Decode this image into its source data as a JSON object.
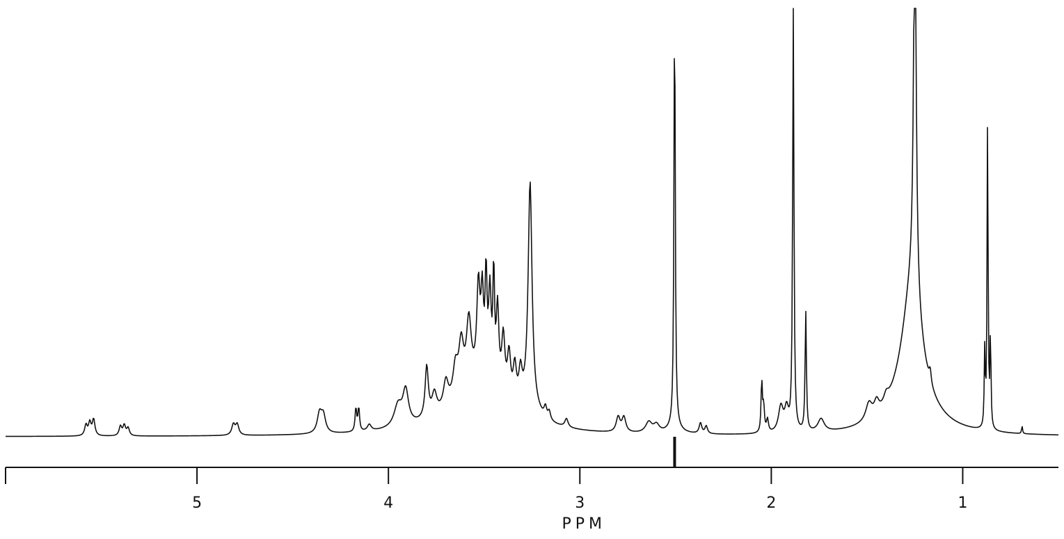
{
  "chart_data": {
    "type": "line",
    "title": "",
    "xlabel": "PPM",
    "ylabel": "",
    "x_reversed": true,
    "xlim": [
      6.0,
      0.5
    ],
    "ylim": [
      0,
      1.0
    ],
    "grid": false,
    "xticks": [
      {
        "value": 5,
        "label": "5"
      },
      {
        "value": 4,
        "label": "4"
      },
      {
        "value": 3,
        "label": "3"
      },
      {
        "value": 2,
        "label": "2"
      },
      {
        "value": 1,
        "label": "1"
      }
    ],
    "minor_tick_step": 0.5,
    "series": [
      {
        "color": "#111111",
        "peaks": [
          {
            "x": 5.58,
            "y": 0.025,
            "w": 0.008
          },
          {
            "x": 5.56,
            "y": 0.03,
            "w": 0.008
          },
          {
            "x": 5.54,
            "y": 0.038,
            "w": 0.008
          },
          {
            "x": 5.4,
            "y": 0.022,
            "w": 0.008
          },
          {
            "x": 5.38,
            "y": 0.024,
            "w": 0.008
          },
          {
            "x": 5.36,
            "y": 0.018,
            "w": 0.008
          },
          {
            "x": 4.81,
            "y": 0.025,
            "w": 0.01
          },
          {
            "x": 4.79,
            "y": 0.025,
            "w": 0.01
          },
          {
            "x": 4.36,
            "y": 0.045,
            "w": 0.014
          },
          {
            "x": 4.34,
            "y": 0.04,
            "w": 0.014
          },
          {
            "x": 4.17,
            "y": 0.055,
            "w": 0.005
          },
          {
            "x": 4.155,
            "y": 0.055,
            "w": 0.005
          },
          {
            "x": 4.1,
            "y": 0.015,
            "w": 0.012
          },
          {
            "x": 3.95,
            "y": 0.05,
            "w": 0.025
          },
          {
            "x": 3.91,
            "y": 0.08,
            "w": 0.018
          },
          {
            "x": 3.8,
            "y": 0.12,
            "w": 0.01
          },
          {
            "x": 3.76,
            "y": 0.05,
            "w": 0.015
          },
          {
            "x": 3.7,
            "y": 0.06,
            "w": 0.015
          },
          {
            "x": 3.65,
            "y": 0.07,
            "w": 0.015
          },
          {
            "x": 3.62,
            "y": 0.11,
            "w": 0.015
          },
          {
            "x": 3.58,
            "y": 0.15,
            "w": 0.015
          },
          {
            "x": 3.53,
            "y": 0.21,
            "w": 0.01
          },
          {
            "x": 3.51,
            "y": 0.18,
            "w": 0.008
          },
          {
            "x": 3.49,
            "y": 0.23,
            "w": 0.006
          },
          {
            "x": 3.47,
            "y": 0.2,
            "w": 0.008
          },
          {
            "x": 3.45,
            "y": 0.25,
            "w": 0.005
          },
          {
            "x": 3.43,
            "y": 0.18,
            "w": 0.008
          },
          {
            "x": 3.4,
            "y": 0.13,
            "w": 0.01
          },
          {
            "x": 3.37,
            "y": 0.1,
            "w": 0.01
          },
          {
            "x": 3.34,
            "y": 0.08,
            "w": 0.01
          },
          {
            "x": 3.31,
            "y": 0.07,
            "w": 0.01
          },
          {
            "x": 3.26,
            "y": 0.52,
            "w": 0.012
          },
          {
            "x": 3.18,
            "y": 0.025,
            "w": 0.008
          },
          {
            "x": 3.16,
            "y": 0.02,
            "w": 0.008
          },
          {
            "x": 3.07,
            "y": 0.02,
            "w": 0.01
          },
          {
            "x": 2.8,
            "y": 0.035,
            "w": 0.012
          },
          {
            "x": 2.77,
            "y": 0.035,
            "w": 0.012
          },
          {
            "x": 2.64,
            "y": 0.025,
            "w": 0.02
          },
          {
            "x": 2.6,
            "y": 0.018,
            "w": 0.018
          },
          {
            "x": 2.505,
            "y": 1.0,
            "w": 0.004
          },
          {
            "x": 2.37,
            "y": 0.025,
            "w": 0.008
          },
          {
            "x": 2.34,
            "y": 0.018,
            "w": 0.008
          },
          {
            "x": 2.05,
            "y": 0.12,
            "w": 0.004
          },
          {
            "x": 2.04,
            "y": 0.06,
            "w": 0.005
          },
          {
            "x": 2.02,
            "y": 0.03,
            "w": 0.006
          },
          {
            "x": 1.95,
            "y": 0.06,
            "w": 0.015
          },
          {
            "x": 1.92,
            "y": 0.05,
            "w": 0.012
          },
          {
            "x": 1.885,
            "y": 0.99,
            "w": 0.004
          },
          {
            "x": 1.82,
            "y": 0.28,
            "w": 0.004
          },
          {
            "x": 1.74,
            "y": 0.03,
            "w": 0.02
          },
          {
            "x": 1.49,
            "y": 0.04,
            "w": 0.02
          },
          {
            "x": 1.45,
            "y": 0.03,
            "w": 0.015
          },
          {
            "x": 1.4,
            "y": 0.02,
            "w": 0.015
          },
          {
            "x": 1.25,
            "y": 0.96,
            "w": 0.008
          },
          {
            "x": 1.27,
            "y": 0.2,
            "w": 0.06
          },
          {
            "x": 1.17,
            "y": 0.03,
            "w": 0.006
          },
          {
            "x": 0.885,
            "y": 0.18,
            "w": 0.003
          },
          {
            "x": 0.87,
            "y": 0.74,
            "w": 0.003
          },
          {
            "x": 0.855,
            "y": 0.22,
            "w": 0.003
          },
          {
            "x": 0.69,
            "y": 0.018,
            "w": 0.003
          }
        ],
        "broad": [
          {
            "x": 3.52,
            "y": 0.12,
            "w": 0.18
          },
          {
            "x": 3.26,
            "y": 0.03,
            "w": 0.05
          },
          {
            "x": 1.27,
            "y": 0.09,
            "w": 0.12
          },
          {
            "x": 1.25,
            "y": 0.06,
            "w": 0.05
          },
          {
            "x": 2.505,
            "y": 0.015,
            "w": 0.04
          }
        ]
      }
    ]
  }
}
